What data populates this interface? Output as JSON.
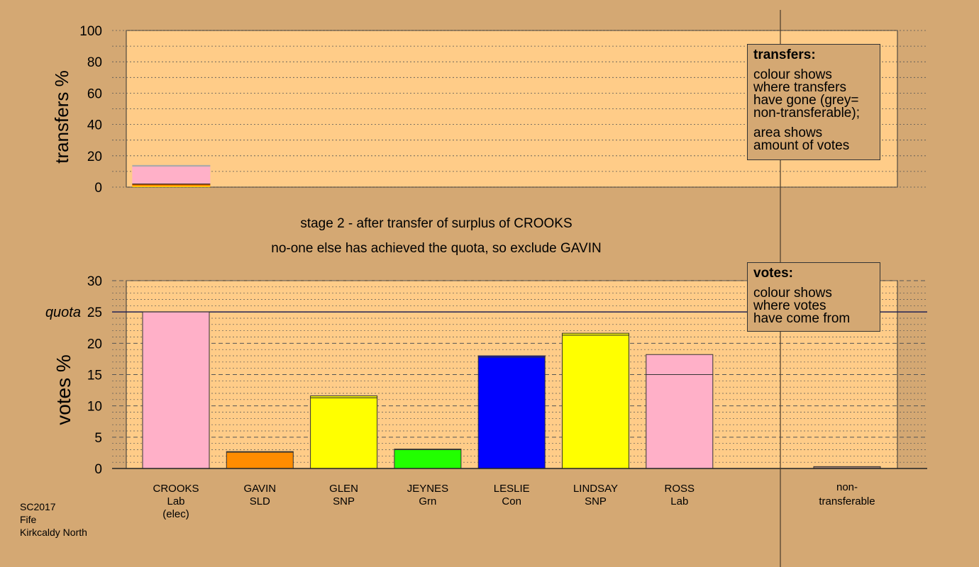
{
  "page": {
    "background": "#d4a873",
    "plot_background": "#ffcc88"
  },
  "stage": {
    "line1": "stage 2 - after transfer of surplus of CROOKS",
    "line2": "no-one else has achieved the quota, so exclude GAVIN"
  },
  "legend_transfers": {
    "title": "transfers:",
    "lines": [
      "colour shows",
      "where transfers",
      "have gone (grey=",
      "non-transferable);"
    ],
    "lines2": [
      "area shows",
      "amount of votes"
    ]
  },
  "legend_votes": {
    "title": "votes:",
    "lines": [
      "colour shows",
      "where votes",
      "have come from"
    ]
  },
  "footer": {
    "line1": "SC2017",
    "line2": "Fife",
    "line3": "Kirkcaldy North"
  },
  "chart_data": [
    {
      "type": "bar",
      "ylabel": "transfers %",
      "ylim": [
        0,
        100
      ],
      "yticks": [
        "0",
        "20",
        "40",
        "60",
        "80",
        "100"
      ],
      "grid": "dotted",
      "stacks": [
        {
          "position": 1,
          "segments": [
            {
              "value": 0.4,
              "color": "#ffff00"
            },
            {
              "value": 1.5,
              "color": "#ff8c00"
            },
            {
              "value": 11.2,
              "color": "#ffb0c8"
            },
            {
              "value": 1.0,
              "color": "#aaaaaa"
            }
          ]
        }
      ]
    },
    {
      "type": "bar",
      "ylabel": "votes %",
      "ylim": [
        0,
        30
      ],
      "yticks": [
        "0",
        "5",
        "10",
        "15",
        "20",
        "25",
        "30"
      ],
      "quota": {
        "label": "quota",
        "value": 25
      },
      "grid": "dashed",
      "categories": [
        {
          "name": "CROOKS",
          "party": "Lab",
          "note": "(elec)",
          "color": "#ffb0c8",
          "segments": [
            25.0
          ]
        },
        {
          "name": "GAVIN",
          "party": "SLD",
          "note": "",
          "color": "#ff8c00",
          "segments": [
            2.6,
            0.1
          ]
        },
        {
          "name": "GLEN",
          "party": "SNP",
          "note": "",
          "color": "#ffff00",
          "segments": [
            11.3,
            0.3
          ]
        },
        {
          "name": "JEYNES",
          "party": "Grn",
          "note": "",
          "color": "#22ff00",
          "segments": [
            3.0,
            0.1
          ]
        },
        {
          "name": "LESLIE",
          "party": "Con",
          "note": "",
          "color": "#0000ff",
          "segments": [
            17.8,
            0.2
          ]
        },
        {
          "name": "LINDSAY",
          "party": "SNP",
          "note": "",
          "color": "#ffff00",
          "segments": [
            21.3,
            0.3
          ]
        },
        {
          "name": "ROSS",
          "party": "Lab",
          "note": "",
          "color": "#ffb0c8",
          "segments": [
            15.0,
            3.2
          ]
        }
      ],
      "non_transferable": {
        "label1": "non-",
        "label2": "transferable",
        "value": 0.3
      }
    }
  ]
}
